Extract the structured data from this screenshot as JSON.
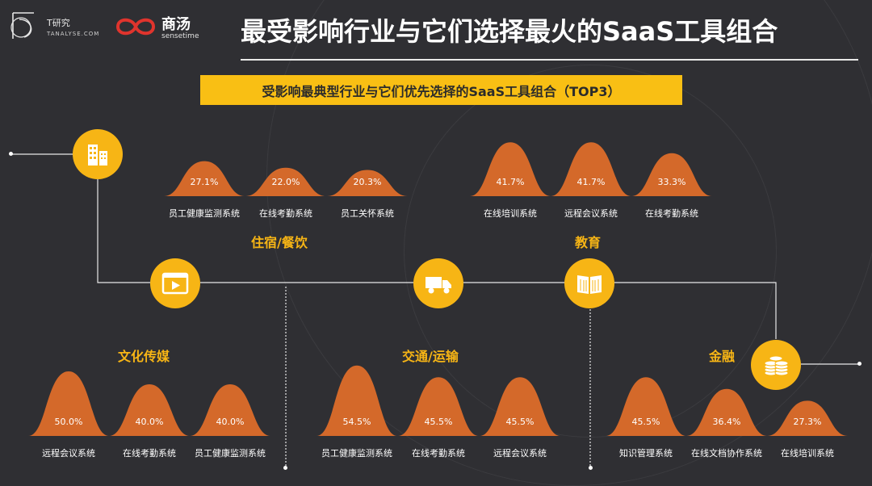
{
  "header": {
    "logo_t_name": "T研究",
    "logo_t_sub": "TANALYSE.COM",
    "logo_s_name": "商汤",
    "logo_s_sub": "sensetime",
    "title": "最受影响行业与它们选择最火的SaaS工具组合"
  },
  "subtitle": "受影响最典型行业与它们优先选择的SaaS工具组合（TOP3）",
  "colors": {
    "accent": "#f7b515",
    "mound": "#d4692a",
    "background": "#2f2f33",
    "line": "#e8e8e8"
  },
  "industries": [
    {
      "id": "hospitality",
      "label": "住宿/餐饮",
      "icon": "building-icon"
    },
    {
      "id": "media",
      "label": "文化传媒",
      "icon": "video-icon"
    },
    {
      "id": "transport",
      "label": "交通/运输",
      "icon": "truck-icon"
    },
    {
      "id": "education",
      "label": "教育",
      "icon": "book-icon"
    },
    {
      "id": "finance",
      "label": "金融",
      "icon": "coins-icon"
    }
  ],
  "chart_data": {
    "type": "bar",
    "title": "受影响最典型行业与它们优先选择的SaaS工具组合（TOP3）",
    "unit": "%",
    "groups": [
      {
        "industry": "住宿/餐饮",
        "categories": [
          "员工健康监测系统",
          "在线考勤系统",
          "员工关怀系统"
        ],
        "values": [
          27.1,
          22.0,
          20.3
        ]
      },
      {
        "industry": "教育",
        "categories": [
          "在线培训系统",
          "远程会议系统",
          "在线考勤系统"
        ],
        "values": [
          41.7,
          41.7,
          33.3
        ]
      },
      {
        "industry": "文化传媒",
        "categories": [
          "远程会议系统",
          "在线考勤系统",
          "员工健康监测系统"
        ],
        "values": [
          50.0,
          40.0,
          40.0
        ]
      },
      {
        "industry": "交通/运输",
        "categories": [
          "员工健康监测系统",
          "在线考勤系统",
          "远程会议系统"
        ],
        "values": [
          54.5,
          45.5,
          45.5
        ]
      },
      {
        "industry": "金融",
        "categories": [
          "知识管理系统",
          "在线文档协作系统",
          "在线培训系统"
        ],
        "values": [
          45.5,
          36.4,
          27.3
        ]
      }
    ]
  }
}
